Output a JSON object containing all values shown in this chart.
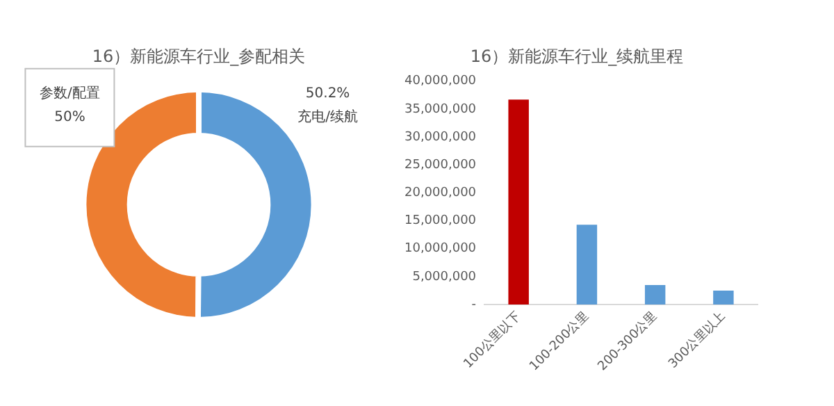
{
  "chart_data": [
    {
      "type": "donut",
      "title": "16）新能源车行业_参配相关",
      "categories": [
        "充电/续航",
        "参数/配置"
      ],
      "values": [
        50.2,
        50
      ],
      "colors": [
        "#5b9bd5",
        "#ed7d31"
      ],
      "value_labels": [
        "50.2%",
        "50%"
      ],
      "legend": false
    },
    {
      "type": "bar",
      "title": "16）新能源车行业_续航里程",
      "categories": [
        "100公里以下",
        "100-200公里",
        "200-300公里",
        "300公里以上"
      ],
      "values": [
        36700000,
        14300000,
        3500000,
        2500000
      ],
      "colors": [
        "#c00000",
        "#5b9bd5",
        "#5b9bd5",
        "#5b9bd5"
      ],
      "ylim": [
        0,
        40000000
      ],
      "yticks": [
        {
          "value": 0,
          "label": "-"
        },
        {
          "value": 5000000,
          "label": "5,000,000"
        },
        {
          "value": 10000000,
          "label": "10,000,000"
        },
        {
          "value": 15000000,
          "label": "15,000,000"
        },
        {
          "value": 20000000,
          "label": "20,000,000"
        },
        {
          "value": 25000000,
          "label": "25,000,000"
        },
        {
          "value": 30000000,
          "label": "30,000,000"
        },
        {
          "value": 35000000,
          "label": "35,000,000"
        },
        {
          "value": 40000000,
          "label": "40,000,000"
        }
      ],
      "grid": false,
      "legend": false
    }
  ]
}
